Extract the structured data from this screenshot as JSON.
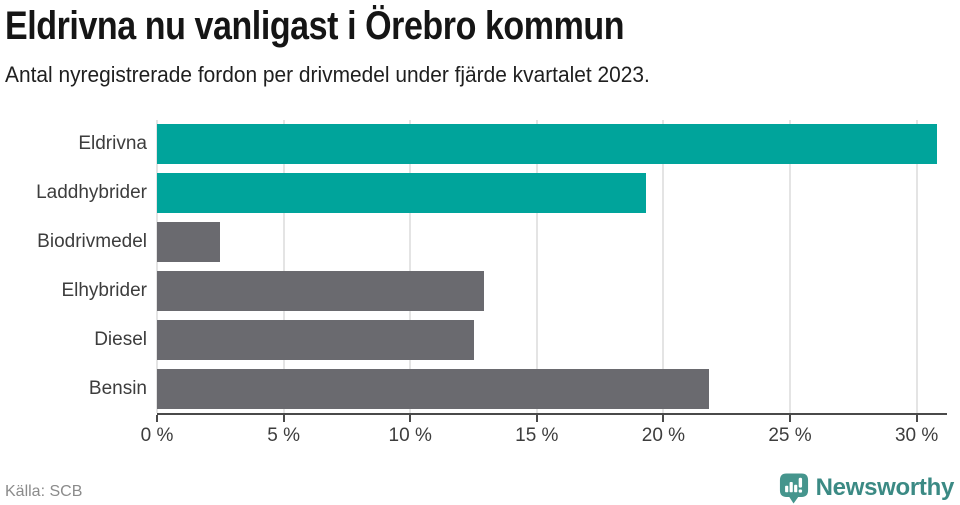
{
  "chart_data": {
    "type": "bar",
    "orientation": "horizontal",
    "title": "Eldrivna nu vanligast i Örebro kommun",
    "subtitle": "Antal nyregistrerade fordon per drivmedel under fjärde kvartalet 2023.",
    "categories": [
      "Eldrivna",
      "Laddhybrider",
      "Biodrivmedel",
      "Elhybrider",
      "Diesel",
      "Bensin"
    ],
    "values": [
      30.8,
      19.3,
      2.5,
      12.9,
      12.5,
      21.8
    ],
    "bar_colors": [
      "#00a49b",
      "#00a49b",
      "#6a6a6f",
      "#6a6a6f",
      "#6a6a6f",
      "#6a6a6f"
    ],
    "xlabel": "",
    "ylabel": "",
    "xlim": [
      0,
      31.2
    ],
    "x_ticks": [
      0,
      5,
      10,
      15,
      20,
      25,
      30
    ],
    "x_tick_labels": [
      "0 %",
      "5 %",
      "10 %",
      "15 %",
      "20 %",
      "25 %",
      "30 %"
    ],
    "grid": "vertical",
    "legend": "none"
  },
  "footer": {
    "source": "Källa: SCB",
    "brand": "Newsworthy"
  },
  "colors": {
    "accent_teal": "#00a49b",
    "neutral_gray": "#6a6a6f",
    "gridline": "#e4e4e4",
    "axis": "#4a4a4a",
    "brand_teal": "#3b8a84"
  }
}
